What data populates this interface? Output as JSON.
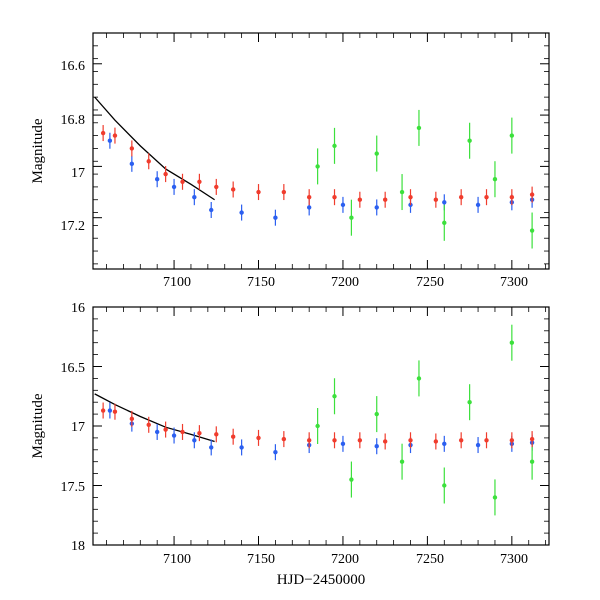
{
  "chart_data": [
    {
      "type": "scatter",
      "title": "",
      "xlabel": "",
      "ylabel": "Magnitude",
      "xlim": [
        7052,
        7322
      ],
      "ylim": [
        17.4,
        16.48
      ],
      "y_inverted": true,
      "xticks": [
        7100,
        7150,
        7200,
        7250,
        7300
      ],
      "xtick_labels": [
        "7100",
        "7150",
        "7200",
        "7250",
        "7300"
      ],
      "yticks": [
        16.6,
        16.8,
        17.0,
        17.2
      ],
      "ytick_labels": [
        "16.6",
        "16.8",
        "17",
        "17.2"
      ],
      "grid": false,
      "legend": "none",
      "series": [
        {
          "color": "#2b5ff0",
          "points": [
            [
              7062,
              16.9
            ],
            [
              7075,
              16.99
            ],
            [
              7090,
              17.05
            ],
            [
              7100,
              17.08
            ],
            [
              7112,
              17.12
            ],
            [
              7122,
              17.17
            ],
            [
              7140,
              17.18
            ],
            [
              7160,
              17.2
            ],
            [
              7180,
              17.16
            ],
            [
              7200,
              17.15
            ],
            [
              7220,
              17.16
            ],
            [
              7240,
              17.15
            ],
            [
              7260,
              17.14
            ],
            [
              7280,
              17.15
            ],
            [
              7300,
              17.14
            ],
            [
              7312,
              17.13
            ]
          ]
        },
        {
          "color": "#3ce03c",
          "points": [
            [
              7185,
              17.0
            ],
            [
              7195,
              16.92
            ],
            [
              7205,
              17.2
            ],
            [
              7220,
              16.95
            ],
            [
              7235,
              17.1
            ],
            [
              7245,
              16.85
            ],
            [
              7260,
              17.22
            ],
            [
              7275,
              16.9
            ],
            [
              7290,
              17.05
            ],
            [
              7300,
              16.88
            ],
            [
              7312,
              17.25
            ]
          ]
        },
        {
          "color": "#f03c2d",
          "points": [
            [
              7058,
              16.87
            ],
            [
              7065,
              16.88
            ],
            [
              7075,
              16.93
            ],
            [
              7085,
              16.98
            ],
            [
              7095,
              17.03
            ],
            [
              7105,
              17.06
            ],
            [
              7115,
              17.06
            ],
            [
              7125,
              17.08
            ],
            [
              7135,
              17.09
            ],
            [
              7150,
              17.1
            ],
            [
              7165,
              17.1
            ],
            [
              7180,
              17.12
            ],
            [
              7195,
              17.12
            ],
            [
              7210,
              17.13
            ],
            [
              7225,
              17.13
            ],
            [
              7240,
              17.12
            ],
            [
              7255,
              17.13
            ],
            [
              7270,
              17.12
            ],
            [
              7285,
              17.12
            ],
            [
              7300,
              17.12
            ],
            [
              7312,
              17.11
            ]
          ]
        }
      ],
      "model_curve": [
        [
          7053,
          16.73
        ],
        [
          7065,
          16.82
        ],
        [
          7080,
          16.92
        ],
        [
          7095,
          17.01
        ],
        [
          7110,
          17.07
        ],
        [
          7124,
          17.13
        ]
      ]
    },
    {
      "type": "scatter",
      "title": "",
      "xlabel": "HJD−2450000",
      "ylabel": "Magnitude",
      "xlim": [
        7052,
        7322
      ],
      "ylim": [
        18.0,
        16.0
      ],
      "y_inverted": true,
      "xticks": [
        7100,
        7150,
        7200,
        7250,
        7300
      ],
      "xtick_labels": [
        "7100",
        "7150",
        "7200",
        "7250",
        "7300"
      ],
      "yticks": [
        16.0,
        16.5,
        17.0,
        17.5,
        18.0
      ],
      "ytick_labels": [
        "16",
        "16.5",
        "17",
        "17.5",
        "18"
      ],
      "grid": false,
      "legend": "none",
      "series": [
        {
          "color": "#2b5ff0",
          "points": [
            [
              7062,
              16.87
            ],
            [
              7075,
              16.98
            ],
            [
              7090,
              17.05
            ],
            [
              7100,
              17.08
            ],
            [
              7112,
              17.12
            ],
            [
              7122,
              17.18
            ],
            [
              7140,
              17.18
            ],
            [
              7160,
              17.22
            ],
            [
              7180,
              17.16
            ],
            [
              7200,
              17.15
            ],
            [
              7220,
              17.17
            ],
            [
              7240,
              17.16
            ],
            [
              7260,
              17.15
            ],
            [
              7280,
              17.16
            ],
            [
              7300,
              17.15
            ],
            [
              7312,
              17.14
            ]
          ]
        },
        {
          "color": "#3ce03c",
          "points": [
            [
              7185,
              17.0
            ],
            [
              7195,
              16.75
            ],
            [
              7205,
              17.45
            ],
            [
              7220,
              16.9
            ],
            [
              7235,
              17.3
            ],
            [
              7245,
              16.6
            ],
            [
              7260,
              17.5
            ],
            [
              7275,
              16.8
            ],
            [
              7290,
              17.6
            ],
            [
              7300,
              16.3
            ],
            [
              7312,
              17.3
            ]
          ]
        },
        {
          "color": "#f03c2d",
          "points": [
            [
              7058,
              16.87
            ],
            [
              7065,
              16.88
            ],
            [
              7075,
              16.94
            ],
            [
              7085,
              16.99
            ],
            [
              7095,
              17.03
            ],
            [
              7105,
              17.05
            ],
            [
              7115,
              17.06
            ],
            [
              7125,
              17.07
            ],
            [
              7135,
              17.09
            ],
            [
              7150,
              17.1
            ],
            [
              7165,
              17.11
            ],
            [
              7180,
              17.12
            ],
            [
              7195,
              17.12
            ],
            [
              7210,
              17.12
            ],
            [
              7225,
              17.13
            ],
            [
              7240,
              17.12
            ],
            [
              7255,
              17.13
            ],
            [
              7270,
              17.12
            ],
            [
              7285,
              17.12
            ],
            [
              7300,
              17.12
            ],
            [
              7312,
              17.11
            ]
          ]
        }
      ],
      "model_curve": [
        [
          7053,
          16.73
        ],
        [
          7065,
          16.82
        ],
        [
          7080,
          16.92
        ],
        [
          7095,
          17.01
        ],
        [
          7110,
          17.07
        ],
        [
          7124,
          17.13
        ]
      ]
    }
  ]
}
